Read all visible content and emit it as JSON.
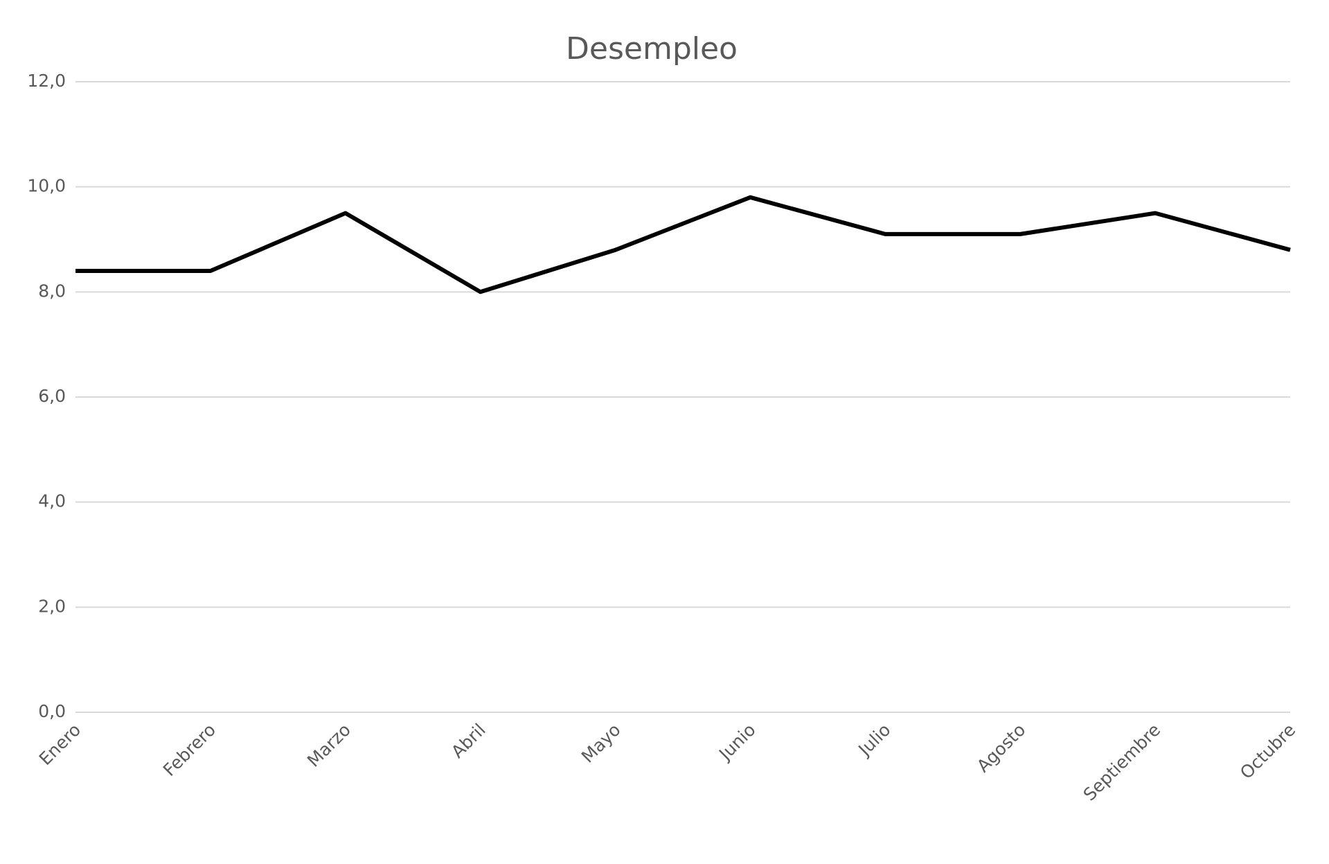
{
  "chart_data": {
    "type": "line",
    "title": "Desempleo",
    "categories": [
      "Enero",
      "Febrero",
      "Marzo",
      "Abril",
      "Mayo",
      "Junio",
      "Julio",
      "Agosto",
      "Septiembre",
      "Octubre"
    ],
    "values": [
      8.4,
      8.4,
      9.5,
      8.0,
      8.8,
      9.8,
      9.1,
      9.1,
      9.5,
      8.8
    ],
    "color": "#000000",
    "ylim": [
      0,
      12
    ],
    "yticks": [
      {
        "value": 0,
        "label": "0,0"
      },
      {
        "value": 2,
        "label": "2,0"
      },
      {
        "value": 4,
        "label": "4,0"
      },
      {
        "value": 6,
        "label": "6,0"
      },
      {
        "value": 8,
        "label": "8,0"
      },
      {
        "value": 10,
        "label": "10,0"
      },
      {
        "value": 12,
        "label": "12,0"
      }
    ],
    "grid": true
  }
}
